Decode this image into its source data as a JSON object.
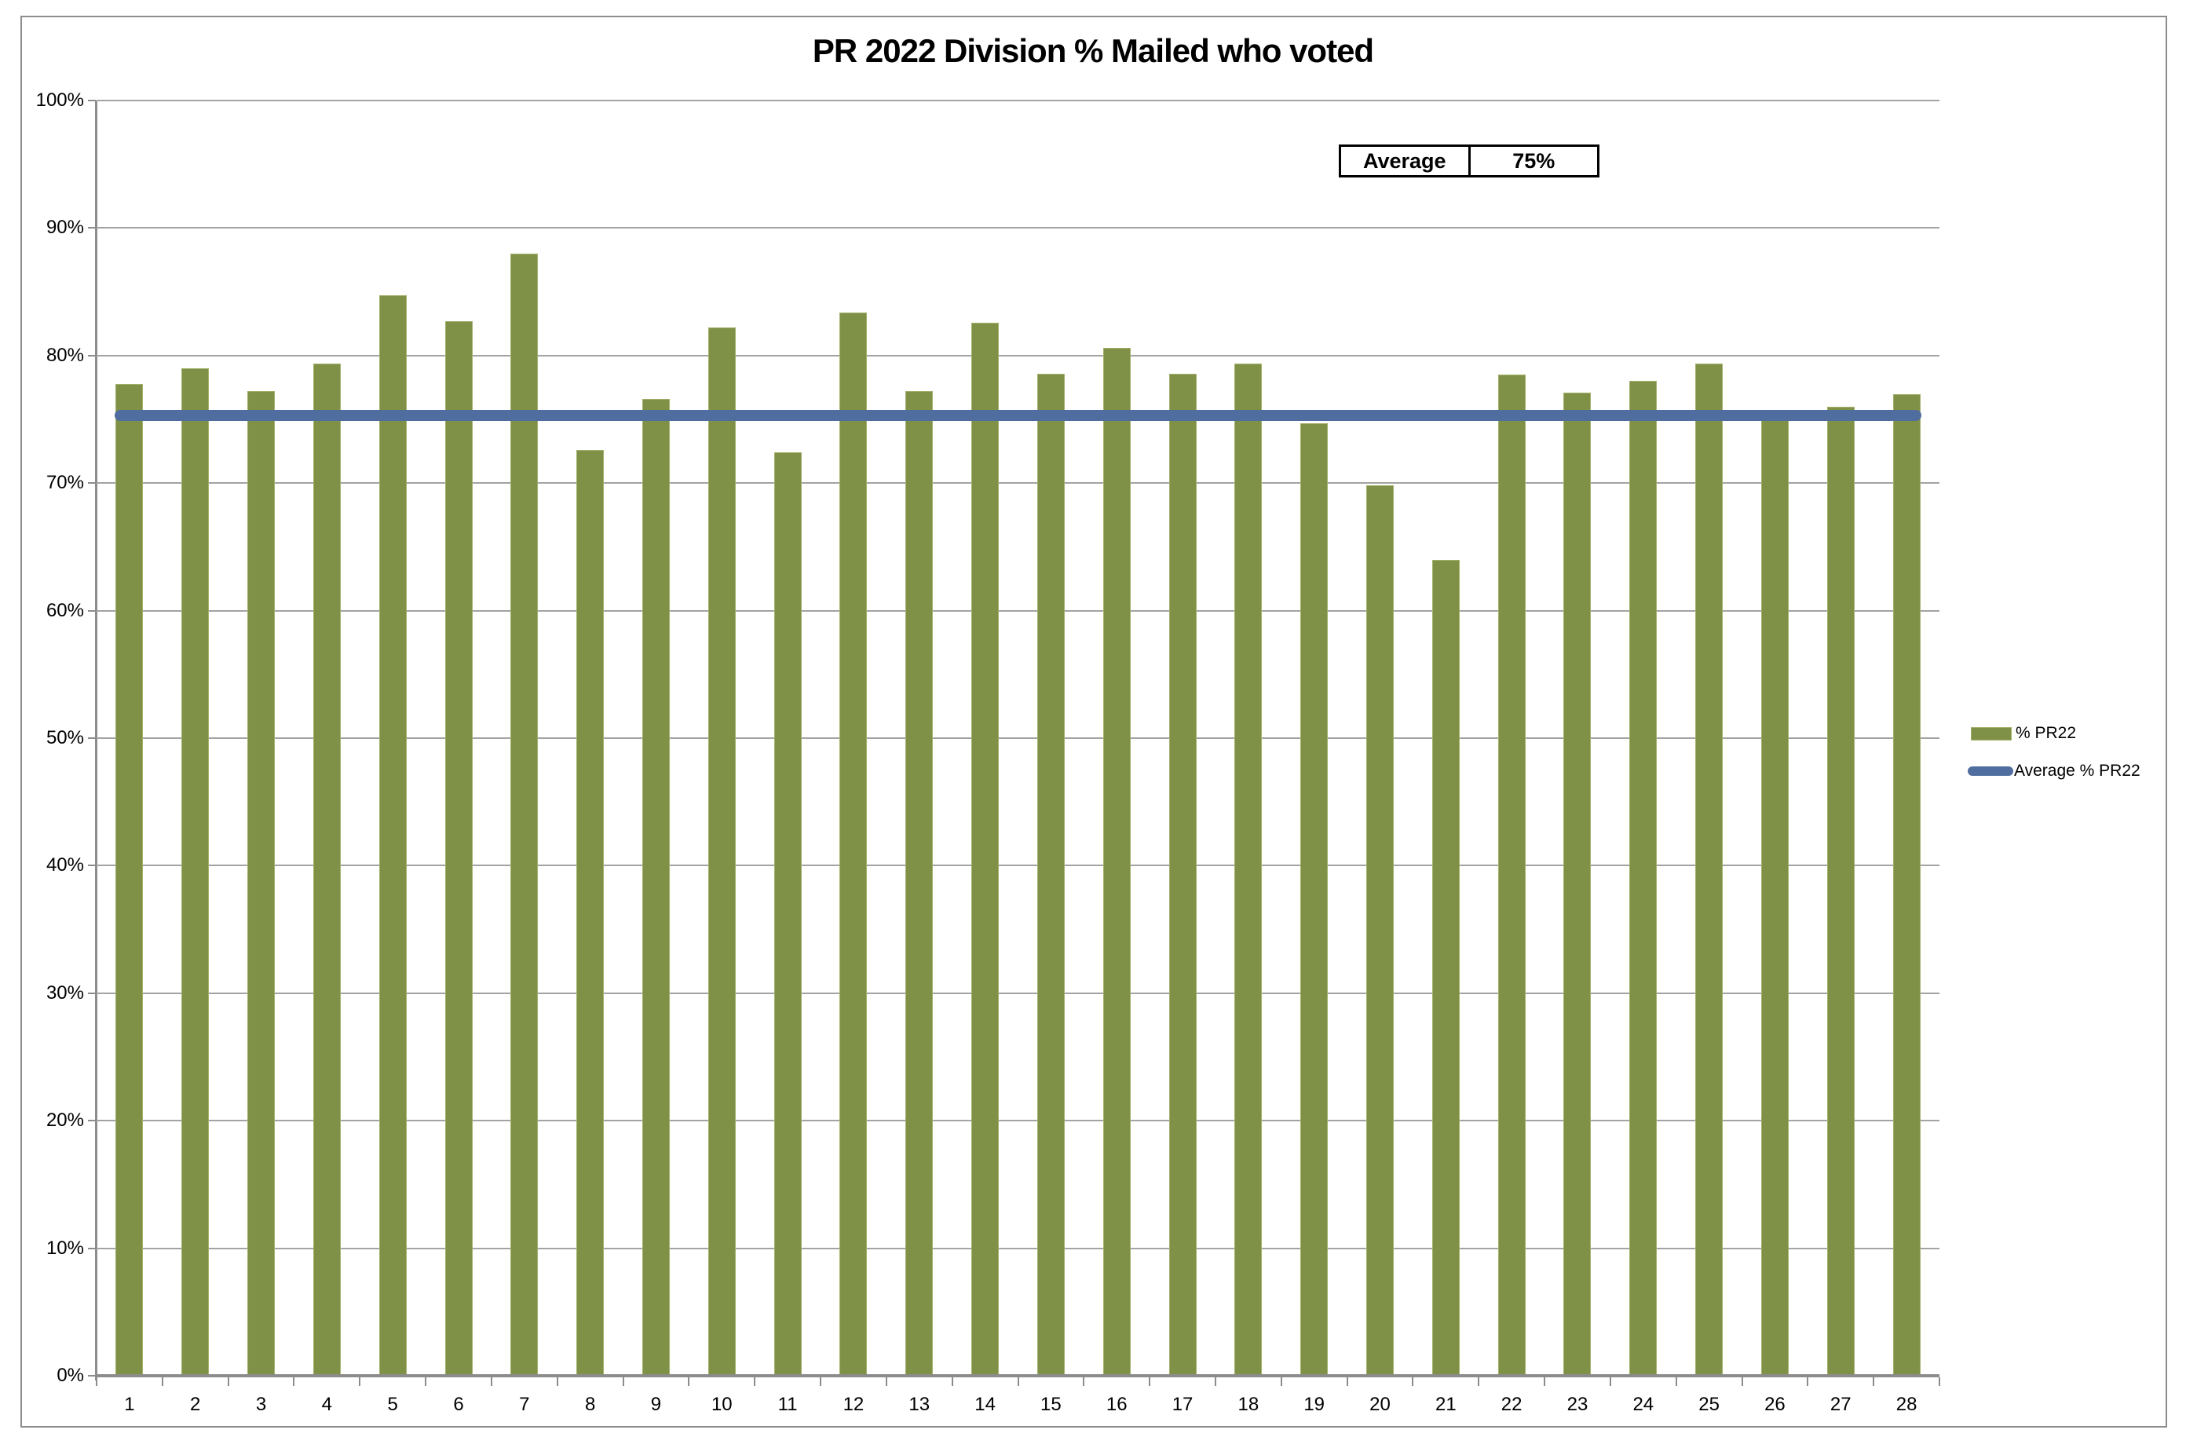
{
  "chart": {
    "title": "PR 2022 Division % Mailed who voted",
    "avg_table": {
      "label": "Average",
      "value": "75%"
    },
    "colors": {
      "bar_fill": "#7f9147",
      "bar_edge": "#a3b06c",
      "line_blue": "#4f6d9e",
      "gridline_gray": "#a3a3a3",
      "axis_gray": "#8c8c8c",
      "text_black": "#000000"
    }
  },
  "chart_data": {
    "type": "bar",
    "title": "PR 2022 Division % Mailed who voted",
    "xlabel": "",
    "ylabel": "",
    "ylim": [
      0,
      100
    ],
    "grid": true,
    "legend_position": "right",
    "y_tick_labels": [
      "0%",
      "10%",
      "20%",
      "30%",
      "40%",
      "50%",
      "60%",
      "70%",
      "80%",
      "90%",
      "100%"
    ],
    "categories": [
      "1",
      "2",
      "3",
      "4",
      "5",
      "6",
      "7",
      "8",
      "9",
      "10",
      "11",
      "12",
      "13",
      "14",
      "15",
      "16",
      "17",
      "18",
      "19",
      "20",
      "21",
      "22",
      "23",
      "24",
      "25",
      "26",
      "27",
      "28"
    ],
    "series": [
      {
        "name": "% PR22",
        "type": "bar",
        "values": [
          77.8,
          79.0,
          77.2,
          79.4,
          84.7,
          82.7,
          88.0,
          72.6,
          76.6,
          82.2,
          72.4,
          83.4,
          77.2,
          82.6,
          78.6,
          80.6,
          78.6,
          79.4,
          74.7,
          69.8,
          64.0,
          78.5,
          77.1,
          78.0,
          79.4,
          75.7,
          76.0,
          77.0
        ]
      },
      {
        "name": "Average % PR22",
        "type": "line",
        "value": 75.3
      }
    ]
  }
}
